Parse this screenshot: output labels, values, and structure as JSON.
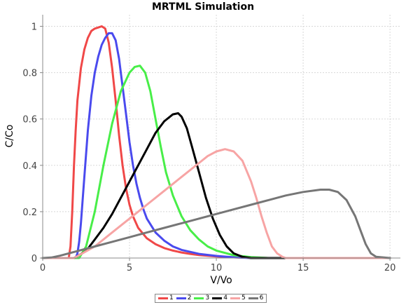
{
  "chart_data": {
    "type": "line",
    "title": "MRTML Simulation",
    "xlabel": "V/Vo",
    "ylabel": "C/Co",
    "xlim": [
      0,
      20.6
    ],
    "ylim": [
      0,
      1.05
    ],
    "xticks": [
      0,
      5,
      10,
      15,
      20
    ],
    "yticks": [
      0,
      0.2,
      0.4,
      0.6,
      0.8,
      1
    ],
    "ytick_labels": [
      "0",
      "0.2",
      "0.4",
      "0.6",
      "0.8",
      "1"
    ],
    "grid": true,
    "legend_position": "bottom-center",
    "series": [
      {
        "name": "1",
        "color": "#f04848",
        "x": [
          0,
          1.5,
          1.6,
          1.7,
          1.8,
          1.9,
          2.0,
          2.2,
          2.4,
          2.6,
          2.8,
          3.0,
          3.2,
          3.4,
          3.6,
          3.8,
          4.0,
          4.2,
          4.4,
          4.6,
          4.8,
          5.0,
          5.2,
          5.5,
          6.0,
          6.5,
          7.0,
          7.5,
          8.0,
          8.5,
          9.0,
          10.0,
          11.0,
          12.0,
          13.0,
          20.0
        ],
        "y": [
          0,
          0,
          0.05,
          0.2,
          0.4,
          0.55,
          0.68,
          0.82,
          0.9,
          0.95,
          0.98,
          0.99,
          0.995,
          1.0,
          0.99,
          0.93,
          0.82,
          0.68,
          0.53,
          0.4,
          0.3,
          0.23,
          0.18,
          0.13,
          0.085,
          0.06,
          0.043,
          0.032,
          0.024,
          0.018,
          0.013,
          0.007,
          0.003,
          0.001,
          0,
          0
        ]
      },
      {
        "name": "2",
        "color": "#4a4aee",
        "x": [
          0,
          1.9,
          2.0,
          2.1,
          2.2,
          2.4,
          2.6,
          2.8,
          3.0,
          3.2,
          3.4,
          3.6,
          3.8,
          4.0,
          4.2,
          4.4,
          4.6,
          4.8,
          5.0,
          5.2,
          5.4,
          5.6,
          5.8,
          6.0,
          6.5,
          7.0,
          7.5,
          8.0,
          9.0,
          10.0,
          11.0,
          12.0,
          20.0
        ],
        "y": [
          0,
          0,
          0.02,
          0.07,
          0.15,
          0.35,
          0.55,
          0.7,
          0.8,
          0.87,
          0.92,
          0.95,
          0.97,
          0.97,
          0.94,
          0.86,
          0.74,
          0.62,
          0.5,
          0.4,
          0.32,
          0.26,
          0.21,
          0.17,
          0.11,
          0.075,
          0.05,
          0.035,
          0.018,
          0.009,
          0.003,
          0,
          0
        ]
      },
      {
        "name": "3",
        "color": "#48ee48",
        "x": [
          0,
          2.1,
          2.5,
          3.0,
          3.5,
          4.0,
          4.5,
          5.0,
          5.3,
          5.6,
          5.9,
          6.2,
          6.5,
          6.8,
          7.1,
          7.5,
          8.0,
          8.5,
          9.0,
          9.5,
          10.0,
          11.0,
          12.0,
          13.0,
          20.0
        ],
        "y": [
          0,
          0,
          0.05,
          0.2,
          0.4,
          0.58,
          0.72,
          0.8,
          0.825,
          0.83,
          0.8,
          0.72,
          0.6,
          0.48,
          0.37,
          0.27,
          0.18,
          0.12,
          0.08,
          0.05,
          0.032,
          0.012,
          0.004,
          0,
          0
        ]
      },
      {
        "name": "4",
        "color": "#000000",
        "x": [
          0,
          1.8,
          2.5,
          3.0,
          3.5,
          4.0,
          4.5,
          5.0,
          5.5,
          6.0,
          6.5,
          7.0,
          7.5,
          7.8,
          8.0,
          8.3,
          8.6,
          9.0,
          9.4,
          9.8,
          10.2,
          10.6,
          11.0,
          11.5,
          12.0,
          20.0
        ],
        "y": [
          0,
          0,
          0.03,
          0.08,
          0.13,
          0.19,
          0.26,
          0.33,
          0.4,
          0.47,
          0.54,
          0.59,
          0.62,
          0.625,
          0.61,
          0.56,
          0.48,
          0.37,
          0.26,
          0.17,
          0.1,
          0.05,
          0.02,
          0.005,
          0,
          0
        ]
      },
      {
        "name": "5",
        "color": "#f7a4a4",
        "x": [
          0,
          1.8,
          3.0,
          4.0,
          5.0,
          6.0,
          7.0,
          8.0,
          9.0,
          9.5,
          10.0,
          10.5,
          11.0,
          11.5,
          12.0,
          12.3,
          12.6,
          12.9,
          13.2,
          13.5,
          13.8,
          14.0,
          20.0
        ],
        "y": [
          0,
          0,
          0.05,
          0.11,
          0.17,
          0.23,
          0.29,
          0.35,
          0.41,
          0.44,
          0.46,
          0.47,
          0.46,
          0.42,
          0.33,
          0.26,
          0.18,
          0.11,
          0.05,
          0.02,
          0.005,
          0,
          0
        ]
      },
      {
        "name": "6",
        "color": "#767676",
        "x": [
          0,
          0.5,
          1.0,
          2.0,
          3.0,
          4.0,
          5.0,
          6.0,
          7.0,
          8.0,
          9.0,
          10.0,
          11.0,
          12.0,
          13.0,
          14.0,
          15.0,
          16.0,
          16.5,
          17.0,
          17.5,
          18.0,
          18.3,
          18.6,
          18.9,
          19.2,
          20.0
        ],
        "y": [
          0,
          0.002,
          0.01,
          0.03,
          0.05,
          0.07,
          0.09,
          0.11,
          0.13,
          0.15,
          0.17,
          0.19,
          0.21,
          0.23,
          0.25,
          0.27,
          0.285,
          0.295,
          0.295,
          0.285,
          0.25,
          0.18,
          0.12,
          0.06,
          0.02,
          0.005,
          0
        ]
      }
    ]
  }
}
